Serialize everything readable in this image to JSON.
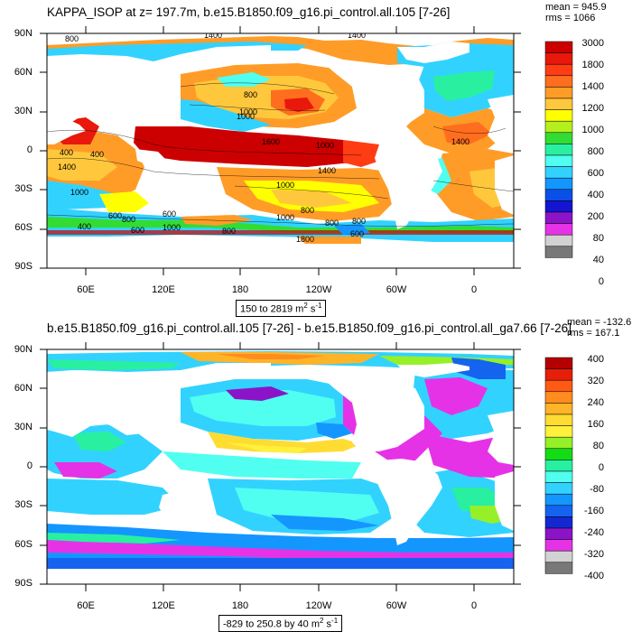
{
  "panel1": {
    "title": "KAPPA_ISOP at z= 197.7m, b.e15.B1850.f09_g16.pi_control.all.105 [7-26]",
    "mean": "mean = 945.9",
    "rms": "rms = 1066",
    "range": "150 to 2819 m",
    "range_units_suffix": "2",
    "range_units_tail": " s",
    "range_units_exp": "-1",
    "colorbar_labels": [
      "3000",
      "1800",
      "1400",
      "1200",
      "1000",
      "800",
      "600",
      "400",
      "200",
      "80",
      "40",
      "0"
    ],
    "colorbar_colors": [
      "#cc0000",
      "#e8180c",
      "#ff3c14",
      "#ff6e1e",
      "#ff9c28",
      "#ffc83c",
      "#ffff00",
      "#b4f01e",
      "#32dc32",
      "#28f0a0",
      "#50fff0",
      "#32d2ff",
      "#1496ff",
      "#0a50e6",
      "#1414d2",
      "#8c14c8",
      "#e632e6",
      "#d2d2d2",
      "#787878"
    ],
    "contour_labels": [
      "1400",
      "1400",
      "800",
      "1000",
      "400",
      "1400",
      "1400",
      "1000",
      "1000",
      "800",
      "800",
      "600",
      "1000",
      "1600",
      "1000",
      "800",
      "1000",
      "1800",
      "800",
      "1000",
      "1400",
      "400",
      "400",
      "600",
      "800",
      "600",
      "600",
      "800"
    ]
  },
  "panel2": {
    "title": "b.e15.B1850.f09_g16.pi_control.all.105 [7-26] - b.e15.B1850.f09_g16.pi_control.all_ga7.66 [7-26]",
    "mean": "mean = -132.6",
    "rms": "rms = 167.1",
    "range": "-829 to 250.8 by 40 m",
    "range_units_suffix": "2",
    "range_units_tail": " s",
    "range_units_exp": "-1",
    "colorbar_labels": [
      "400",
      "320",
      "240",
      "160",
      "80",
      "0",
      "-80",
      "-160",
      "-240",
      "-320",
      "-400"
    ],
    "colorbar_colors": [
      "#b40000",
      "#e61e0a",
      "#ff5a14",
      "#ff8c1e",
      "#ffb428",
      "#ffdc32",
      "#fff03c",
      "#96f028",
      "#14dc14",
      "#28f0a0",
      "#50fff0",
      "#32d2ff",
      "#1496ff",
      "#1464f0",
      "#1428d2",
      "#8c14c8",
      "#e632e6",
      "#d2d2d2",
      "#787878"
    ]
  },
  "axes": {
    "y_ticks": [
      "90N",
      "60N",
      "30N",
      "0",
      "30S",
      "60S",
      "90S"
    ],
    "x_ticks": [
      "60E",
      "120E",
      "180",
      "120W",
      "60W",
      "0"
    ]
  }
}
